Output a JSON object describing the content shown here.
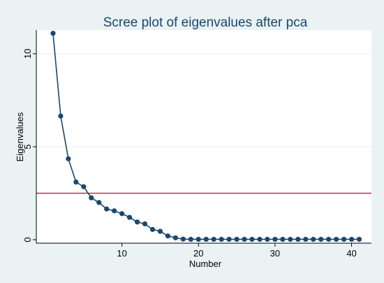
{
  "chart_data": {
    "type": "line",
    "title": "Scree plot of eigenvalues after pca",
    "xlabel": "Number",
    "ylabel": "Eigenvalues",
    "xlim": [
      0,
      41.5
    ],
    "ylim": [
      0,
      11.2
    ],
    "x_ticks": [
      10,
      20,
      30,
      40
    ],
    "y_ticks": [
      0,
      5,
      10
    ],
    "grid": true,
    "series": [
      {
        "x": [
          1,
          2,
          3,
          4,
          5,
          6,
          7,
          8,
          9,
          10,
          11,
          12,
          13,
          14,
          15,
          16,
          17,
          18,
          19,
          20,
          21,
          22,
          23,
          24,
          25,
          26,
          27,
          28,
          29,
          30,
          31,
          32,
          33,
          34,
          35,
          36,
          37,
          38,
          39,
          40,
          41
        ],
        "values": [
          11.1,
          6.65,
          4.35,
          3.1,
          2.85,
          2.25,
          2.0,
          1.65,
          1.55,
          1.4,
          1.2,
          0.95,
          0.85,
          0.55,
          0.45,
          0.2,
          0.1,
          0.03,
          0.02,
          0.02,
          0.02,
          0.02,
          0.02,
          0.02,
          0.02,
          0.02,
          0.02,
          0.02,
          0.02,
          0.02,
          0.02,
          0.02,
          0.02,
          0.02,
          0.02,
          0.02,
          0.02,
          0.02,
          0.02,
          0.02,
          0.02
        ],
        "color": "#1a476f"
      }
    ],
    "reference_line": {
      "y": 2.5,
      "color": "#c10534"
    }
  }
}
